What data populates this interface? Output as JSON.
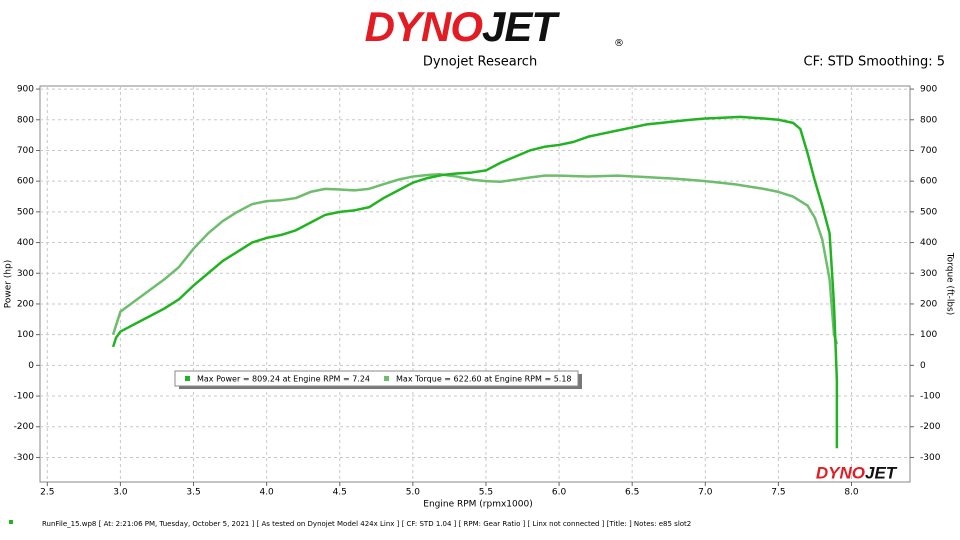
{
  "chart_data": {
    "type": "line",
    "logo_red": "DYNO",
    "logo_black": "JET",
    "logo_mark": "®",
    "title": "Dynojet Research",
    "subtitle": "CF: STD Smoothing: 5",
    "x_label": "Engine RPM (rpmx1000)",
    "y_label": "Power (hp)",
    "y2_label": "Torque (ft-lbs)",
    "footer": "RunFile_15.wp8 [ At: 2:21:06 PM, Tuesday, October 5, 2021 ] [ As tested on Dynojet Model 424x Linx ] [ CF: STD 1.04 ] [ RPM: Gear Ratio ] [ Linx not connected ] [Title: ]  Notes: e85 slot2",
    "grid": true,
    "xlim": [
      2.45,
      8.4
    ],
    "xticks": [
      2.5,
      {
        "value": 3,
        "label": "3.0"
      },
      3.5,
      {
        "value": 4,
        "label": "4.0"
      },
      4.5,
      {
        "value": 5,
        "label": "5.0"
      },
      5.5,
      {
        "value": 6,
        "label": "6.0"
      },
      6.5,
      {
        "value": 7,
        "label": "7.0"
      },
      7.5,
      {
        "value": 8,
        "label": "8.0"
      }
    ],
    "ylim": [
      -380,
      910
    ],
    "yticks": [
      -300,
      -200,
      -100,
      0,
      100,
      200,
      300,
      400,
      500,
      600,
      700,
      800,
      900
    ],
    "y2lim": [
      -380,
      910
    ],
    "y2ticks": [
      -300,
      -200,
      -100,
      0,
      100,
      200,
      300,
      400,
      500,
      600,
      700,
      800,
      900
    ],
    "series": [
      {
        "name": "Max Power = 809.24 at Engine RPM = 7.24",
        "color": "#22b322",
        "x": [
          2.95,
          2.97,
          3.0,
          3.1,
          3.2,
          3.3,
          3.4,
          3.5,
          3.6,
          3.7,
          3.8,
          3.9,
          4.0,
          4.1,
          4.2,
          4.3,
          4.4,
          4.5,
          4.6,
          4.7,
          4.8,
          4.9,
          5.0,
          5.1,
          5.2,
          5.3,
          5.4,
          5.5,
          5.6,
          5.7,
          5.8,
          5.9,
          6.0,
          6.1,
          6.2,
          6.3,
          6.4,
          6.5,
          6.6,
          6.7,
          6.8,
          6.9,
          7.0,
          7.1,
          7.24,
          7.4,
          7.5,
          7.6,
          7.65,
          7.7,
          7.75,
          7.8,
          7.85,
          7.88,
          7.9,
          7.9
        ],
        "values": [
          60,
          90,
          110,
          135,
          160,
          185,
          215,
          260,
          300,
          340,
          370,
          400,
          415,
          425,
          440,
          465,
          490,
          500,
          505,
          515,
          545,
          570,
          595,
          610,
          620,
          625,
          628,
          635,
          660,
          680,
          700,
          712,
          718,
          728,
          745,
          755,
          765,
          775,
          785,
          790,
          795,
          800,
          804,
          806,
          809.24,
          804,
          800,
          790,
          770,
          690,
          600,
          520,
          430,
          200,
          -50,
          -270
        ]
      },
      {
        "name": "Max Torque = 622.60 at Engine RPM = 5.18",
        "color": "#6dbd6d",
        "axis": "y2",
        "x": [
          2.95,
          2.97,
          3.0,
          3.1,
          3.2,
          3.3,
          3.4,
          3.5,
          3.6,
          3.7,
          3.8,
          3.9,
          4.0,
          4.1,
          4.2,
          4.3,
          4.4,
          4.5,
          4.6,
          4.7,
          4.8,
          4.9,
          5.0,
          5.1,
          5.18,
          5.3,
          5.4,
          5.5,
          5.6,
          5.7,
          5.8,
          5.9,
          6.0,
          6.2,
          6.4,
          6.6,
          6.8,
          7.0,
          7.2,
          7.4,
          7.5,
          7.6,
          7.7,
          7.75,
          7.8,
          7.85,
          7.88,
          7.9
        ],
        "values": [
          100,
          130,
          175,
          210,
          245,
          280,
          320,
          380,
          430,
          470,
          500,
          525,
          535,
          538,
          545,
          565,
          575,
          573,
          570,
          575,
          590,
          605,
          615,
          620,
          622.6,
          615,
          605,
          600,
          598,
          605,
          612,
          618,
          618,
          615,
          618,
          613,
          608,
          600,
          590,
          575,
          565,
          550,
          520,
          480,
          410,
          280,
          100,
          70
        ]
      }
    ]
  }
}
